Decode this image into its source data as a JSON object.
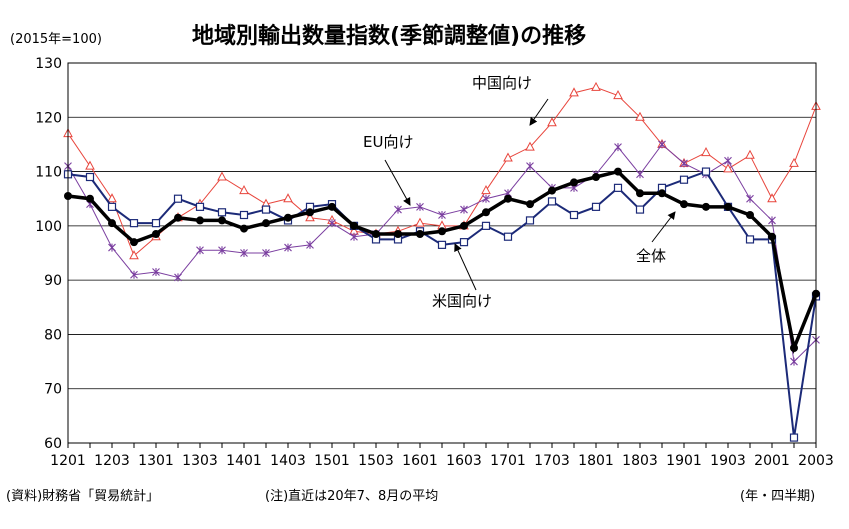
{
  "header": {
    "unit": "(2015年=100)",
    "title": "地域別輸出数量指数(季節調整値)の推移"
  },
  "footer": {
    "source": "(資料)財務省「貿易統計」",
    "note": "(注)直近は20年7、8月の平均",
    "period_label": "(年・四半期)"
  },
  "chart_data": {
    "type": "line",
    "xlabel": "",
    "ylabel": "",
    "ylim": [
      60,
      130
    ],
    "yticks": [
      60,
      70,
      80,
      90,
      100,
      110,
      120,
      130
    ],
    "grid": true,
    "x_tick_labels": [
      "1201",
      "1203",
      "1301",
      "1303",
      "1401",
      "1403",
      "1501",
      "1503",
      "1601",
      "1603",
      "1701",
      "1703",
      "1801",
      "1803",
      "1901",
      "1903",
      "2001",
      "2003"
    ],
    "categories": [
      "1201",
      "1202",
      "1203",
      "1204",
      "1301",
      "1302",
      "1303",
      "1304",
      "1401",
      "1402",
      "1403",
      "1404",
      "1501",
      "1502",
      "1503",
      "1504",
      "1601",
      "1602",
      "1603",
      "1604",
      "1701",
      "1702",
      "1703",
      "1704",
      "1801",
      "1802",
      "1803",
      "1804",
      "1901",
      "1902",
      "1903",
      "1904",
      "2001",
      "2002",
      "2003"
    ],
    "series": [
      {
        "name": "中国向け",
        "color": "#e8453c",
        "marker": "triangle",
        "values": [
          117,
          111,
          105,
          94.5,
          98,
          101.5,
          104,
          109,
          106.5,
          104,
          105,
          101.5,
          101,
          99,
          98.5,
          99,
          100.5,
          100,
          100,
          106.5,
          112.5,
          114.5,
          119,
          124.5,
          125.5,
          124,
          120,
          115,
          111.5,
          113.5,
          110.5,
          113,
          105,
          111.5,
          122
        ]
      },
      {
        "name": "EU向け",
        "color": "#7b3fa0",
        "marker": "x",
        "values": [
          111,
          104,
          96,
          91,
          91.5,
          90.5,
          95.5,
          95.5,
          95,
          95,
          96,
          96.5,
          100.5,
          98,
          98.5,
          103,
          103.5,
          102,
          103,
          105,
          106,
          111,
          107,
          107,
          109.5,
          114.5,
          109.5,
          115,
          111.5,
          109.5,
          112,
          105,
          101,
          75,
          79
        ]
      },
      {
        "name": "米国向け",
        "color": "#1c2a78",
        "marker": "square",
        "values": [
          109.5,
          109,
          103.5,
          100.5,
          100.5,
          105,
          103.5,
          102.5,
          102,
          103,
          101,
          103.5,
          104,
          100,
          97.5,
          97.5,
          99,
          96.5,
          97,
          100,
          98,
          101,
          104.5,
          102,
          103.5,
          107,
          103,
          107,
          108.5,
          110,
          103.5,
          97.5,
          97.5,
          61,
          87
        ]
      },
      {
        "name": "全体",
        "color": "#000000",
        "marker": "circle",
        "values": [
          105.5,
          105,
          100.5,
          97,
          98.5,
          101.5,
          101,
          101,
          99.5,
          100.5,
          101.5,
          102.5,
          103.5,
          100,
          98.5,
          98.5,
          98.5,
          99,
          100,
          102.5,
          105,
          104,
          106.5,
          108,
          109,
          110,
          106,
          106,
          104,
          103.5,
          103.5,
          102,
          98,
          77.5,
          87.5
        ]
      }
    ],
    "annotations": [
      {
        "text": "中国向け",
        "series": "中国向け"
      },
      {
        "text": "EU向け",
        "series": "EU向け"
      },
      {
        "text": "全体",
        "series": "全体"
      },
      {
        "text": "米国向け",
        "series": "米国向け"
      }
    ]
  }
}
